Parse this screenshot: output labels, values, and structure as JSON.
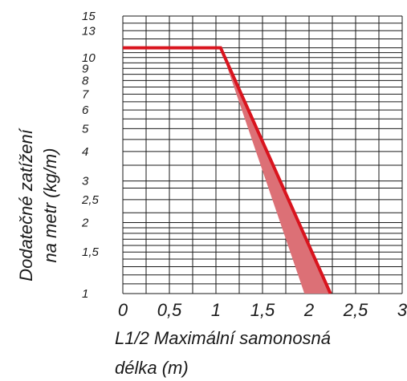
{
  "chart_data": {
    "type": "line",
    "title": "",
    "xlabel": [
      "L1/2 Maximální samonosná",
      "délka (m)"
    ],
    "ylabel": [
      "Dodatečné zatížení",
      "na metr (kg/m)"
    ],
    "xlim": [
      0,
      3
    ],
    "ylim": [
      1,
      15
    ],
    "yscale": "log",
    "x_ticks": [
      {
        "value": 0,
        "label": "0"
      },
      {
        "value": 0.5,
        "label": "0,5"
      },
      {
        "value": 1,
        "label": "1"
      },
      {
        "value": 1.5,
        "label": "1,5"
      },
      {
        "value": 2,
        "label": "2"
      },
      {
        "value": 2.5,
        "label": "2,5"
      },
      {
        "value": 3,
        "label": "3"
      }
    ],
    "y_ticks": [
      {
        "value": 1,
        "label": "1"
      },
      {
        "value": 1.5,
        "label": "1,5"
      },
      {
        "value": 2,
        "label": "2"
      },
      {
        "value": 2.5,
        "label": "2,5"
      },
      {
        "value": 3,
        "label": "3"
      },
      {
        "value": 4,
        "label": "4"
      },
      {
        "value": 5,
        "label": "5"
      },
      {
        "value": 6,
        "label": "6"
      },
      {
        "value": 7,
        "label": "7"
      },
      {
        "value": 8,
        "label": "8"
      },
      {
        "value": 9,
        "label": "9"
      },
      {
        "value": 10,
        "label": "10"
      },
      {
        "value": 13,
        "label": "13"
      },
      {
        "value": 15,
        "label": "15"
      }
    ],
    "y_gridlines": [
      1,
      1.1,
      1.2,
      1.3,
      1.4,
      1.5,
      1.6,
      1.7,
      1.8,
      1.9,
      2,
      2.2,
      2.5,
      2.8,
      3,
      3.5,
      4,
      4.5,
      5,
      5.5,
      6,
      6.5,
      7,
      7.5,
      8,
      8.5,
      9,
      9.5,
      10,
      10.5,
      11,
      12,
      13,
      14,
      15
    ],
    "x_gridlines": [
      0,
      0.25,
      0.5,
      0.75,
      1,
      1.25,
      1.5,
      1.75,
      2,
      2.25,
      2.5,
      2.75,
      3
    ],
    "grid": true,
    "series": [
      {
        "x": [
          0,
          1.05,
          2.23
        ],
        "y": [
          11,
          11,
          1
        ],
        "color": "#d9141e"
      }
    ],
    "band": {
      "upper": {
        "x": [
          1.05,
          2.23
        ],
        "y": [
          11,
          1
        ]
      },
      "lower": {
        "x": [
          1.05,
          1.95
        ],
        "y": [
          11,
          1
        ]
      },
      "color": "#dc7076"
    },
    "colors": {
      "line": "#d9141e",
      "band": "#dc7076",
      "grid": "#1a1a1a"
    }
  }
}
